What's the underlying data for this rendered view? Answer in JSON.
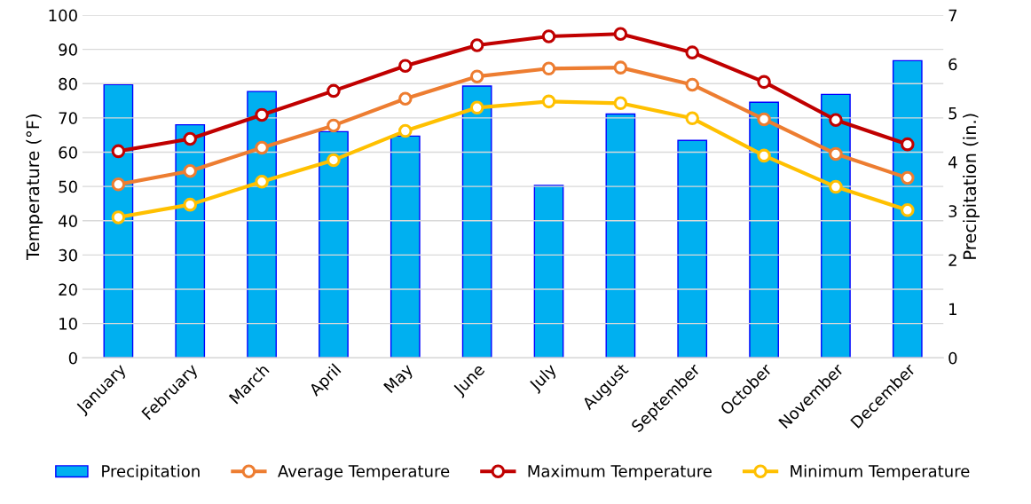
{
  "chart_data": {
    "type": "line",
    "categories": [
      "January",
      "February",
      "March",
      "April",
      "May",
      "June",
      "July",
      "August",
      "September",
      "October",
      "November",
      "December"
    ],
    "ylabel": "Temperature (°F)",
    "y2label": "Precipitation (in.)",
    "ylim": [
      0,
      100
    ],
    "yticks": [
      0,
      10,
      20,
      30,
      40,
      50,
      60,
      70,
      80,
      90,
      100
    ],
    "y2lim": [
      0,
      7
    ],
    "y2ticks": [
      0,
      1,
      2,
      3,
      4,
      5,
      6,
      7
    ],
    "grid": "y",
    "legend": "bottom",
    "marker": "circle",
    "line_style": "solid",
    "series": [
      {
        "name": "Precipitation",
        "type": "bar",
        "axis": "y2",
        "color": "#00b0f0",
        "values": [
          5.58,
          4.76,
          5.44,
          4.62,
          4.53,
          5.55,
          3.52,
          4.98,
          4.44,
          5.22,
          5.38,
          6.07
        ]
      },
      {
        "name": "Average Temperature",
        "color": "#ed7d31",
        "values": [
          50.6,
          54.5,
          61.3,
          67.8,
          75.6,
          82.1,
          84.4,
          84.7,
          79.7,
          69.6,
          59.5,
          52.5
        ]
      },
      {
        "name": "Maximum Temperature",
        "color": "#c00000",
        "values": [
          60.3,
          63.9,
          70.9,
          77.9,
          85.2,
          91.2,
          93.8,
          94.5,
          89.1,
          80.5,
          69.4,
          62.3
        ]
      },
      {
        "name": "Minimum Temperature",
        "color": "#ffc000",
        "values": [
          41.0,
          44.7,
          51.4,
          57.7,
          66.2,
          73.0,
          74.8,
          74.3,
          69.9,
          59.0,
          49.9,
          43.1
        ]
      }
    ]
  }
}
